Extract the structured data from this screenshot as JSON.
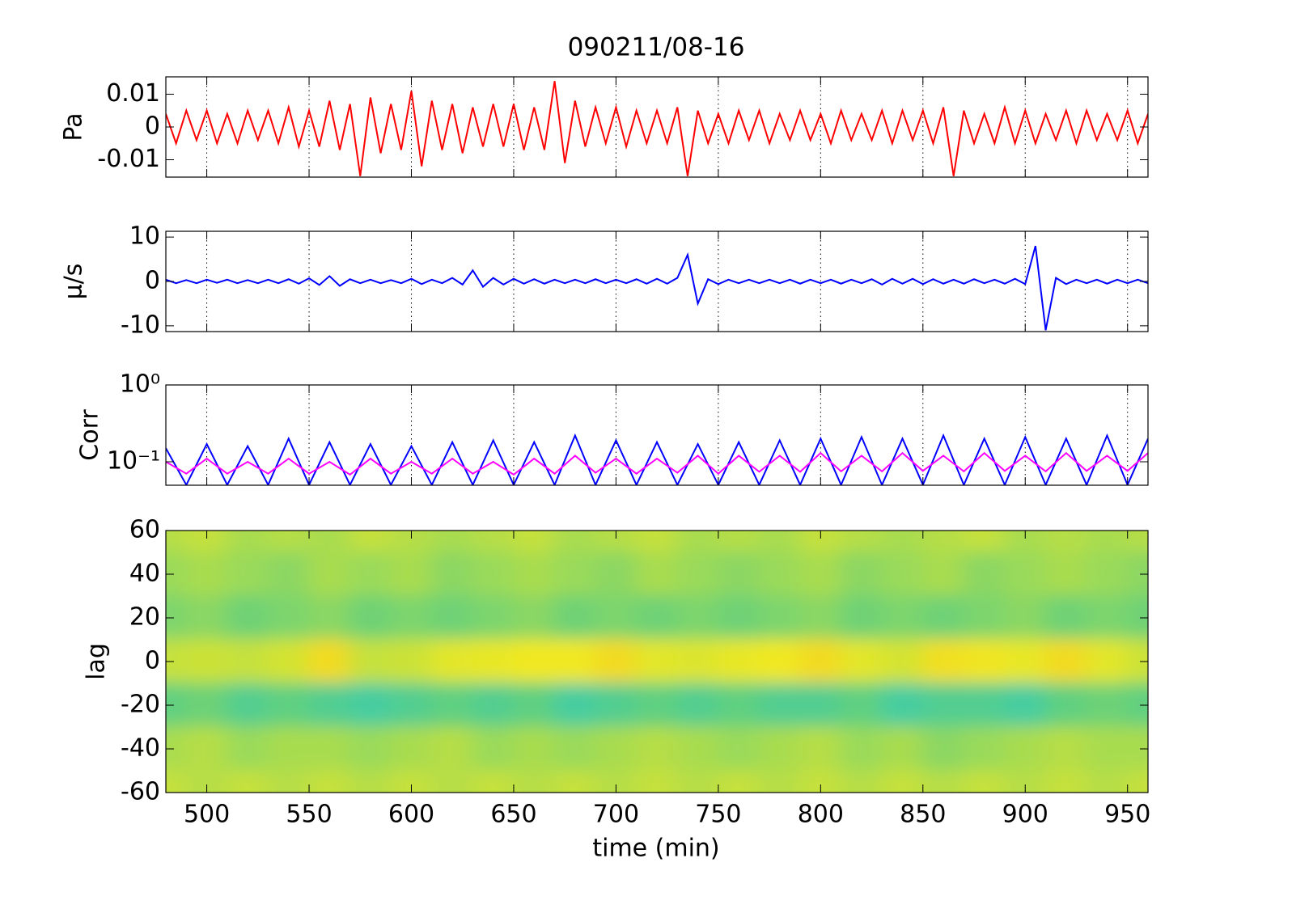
{
  "chart_data": [
    {
      "type": "line",
      "title": "090211/08-16",
      "ylabel": "Pa",
      "xlim": [
        480,
        960
      ],
      "xticks": [
        500,
        550,
        600,
        650,
        700,
        750,
        800,
        850,
        900,
        950
      ],
      "grid": "x",
      "ylim": [
        -0.0153,
        0.0153
      ],
      "yticks": [
        -0.01,
        0,
        0.01
      ],
      "x": [
        480,
        485,
        490,
        495,
        500,
        505,
        510,
        515,
        520,
        525,
        530,
        535,
        540,
        545,
        550,
        555,
        560,
        565,
        570,
        575,
        580,
        585,
        590,
        595,
        600,
        605,
        610,
        615,
        620,
        625,
        630,
        635,
        640,
        645,
        650,
        655,
        660,
        665,
        670,
        675,
        680,
        685,
        690,
        695,
        700,
        705,
        710,
        715,
        720,
        725,
        730,
        735,
        740,
        745,
        750,
        755,
        760,
        765,
        770,
        775,
        780,
        785,
        790,
        795,
        800,
        805,
        810,
        815,
        820,
        825,
        830,
        835,
        840,
        845,
        850,
        855,
        860,
        865,
        870,
        875,
        880,
        885,
        890,
        895,
        900,
        905,
        910,
        915,
        920,
        925,
        930,
        935,
        940,
        945,
        950,
        955,
        960
      ],
      "series": [
        {
          "color": "#ff0000",
          "values": [
            0.004,
            -0.005,
            0.005,
            -0.004,
            0.005,
            -0.005,
            0.004,
            -0.005,
            0.005,
            -0.004,
            0.005,
            -0.005,
            0.006,
            -0.006,
            0.005,
            -0.006,
            0.008,
            -0.007,
            0.007,
            -0.015,
            0.009,
            -0.008,
            0.007,
            -0.007,
            0.011,
            -0.012,
            0.008,
            -0.007,
            0.007,
            -0.008,
            0.006,
            -0.006,
            0.007,
            -0.006,
            0.007,
            -0.007,
            0.006,
            -0.007,
            0.014,
            -0.011,
            0.008,
            -0.006,
            0.006,
            -0.005,
            0.006,
            -0.006,
            0.005,
            -0.005,
            0.005,
            -0.005,
            0.006,
            -0.015,
            0.005,
            -0.005,
            0.004,
            -0.005,
            0.005,
            -0.004,
            0.005,
            -0.005,
            0.004,
            -0.004,
            0.005,
            -0.004,
            0.004,
            -0.005,
            0.005,
            -0.004,
            0.004,
            -0.004,
            0.005,
            -0.005,
            0.005,
            -0.004,
            0.005,
            -0.005,
            0.006,
            -0.015,
            0.005,
            -0.005,
            0.004,
            -0.005,
            0.006,
            -0.005,
            0.005,
            -0.005,
            0.004,
            -0.004,
            0.005,
            -0.005,
            0.005,
            -0.004,
            0.004,
            -0.004,
            0.005,
            -0.005,
            0.004
          ]
        }
      ]
    },
    {
      "type": "line",
      "ylabel": "μ/s",
      "xlim": [
        480,
        960
      ],
      "xticks": [
        500,
        550,
        600,
        650,
        700,
        750,
        800,
        850,
        900,
        950
      ],
      "grid": "x",
      "ylim": [
        -11.3,
        11.3
      ],
      "yticks": [
        -10,
        0,
        10
      ],
      "x": [
        480,
        485,
        490,
        495,
        500,
        505,
        510,
        515,
        520,
        525,
        530,
        535,
        540,
        545,
        550,
        555,
        560,
        565,
        570,
        575,
        580,
        585,
        590,
        595,
        600,
        605,
        610,
        615,
        620,
        625,
        630,
        635,
        640,
        645,
        650,
        655,
        660,
        665,
        670,
        675,
        680,
        685,
        690,
        695,
        700,
        705,
        710,
        715,
        720,
        725,
        730,
        735,
        740,
        745,
        750,
        755,
        760,
        765,
        770,
        775,
        780,
        785,
        790,
        795,
        800,
        805,
        810,
        815,
        820,
        825,
        830,
        835,
        840,
        845,
        850,
        855,
        860,
        865,
        870,
        875,
        880,
        885,
        890,
        895,
        900,
        905,
        910,
        915,
        920,
        925,
        930,
        935,
        940,
        945,
        950,
        955,
        960
      ],
      "series": [
        {
          "color": "#0000ff",
          "values": [
            0.4,
            -0.4,
            0.3,
            -0.4,
            0.4,
            -0.3,
            0.4,
            -0.4,
            0.3,
            -0.4,
            0.4,
            -0.4,
            0.5,
            -0.5,
            0.7,
            -0.8,
            1.2,
            -1.0,
            0.5,
            -0.4,
            0.4,
            -0.4,
            0.3,
            -0.4,
            0.6,
            -0.6,
            0.4,
            -0.4,
            0.8,
            -0.7,
            2.5,
            -1.2,
            0.8,
            -0.7,
            0.6,
            -0.5,
            0.5,
            -0.5,
            0.4,
            -0.4,
            0.4,
            -0.4,
            0.5,
            -0.4,
            0.4,
            -0.4,
            0.5,
            -0.5,
            0.6,
            -0.5,
            0.8,
            6.0,
            -5.0,
            0.5,
            -0.6,
            0.4,
            -0.4,
            0.4,
            -0.4,
            0.4,
            -0.4,
            0.4,
            -0.5,
            0.4,
            -0.4,
            0.4,
            -0.5,
            0.4,
            -0.4,
            0.5,
            -0.7,
            0.6,
            -0.5,
            0.6,
            -0.6,
            0.5,
            -0.5,
            0.4,
            -0.5,
            0.5,
            -0.4,
            0.4,
            -0.5,
            0.6,
            -0.6,
            8.0,
            -11.0,
            0.8,
            -0.6,
            0.4,
            -0.4,
            0.4,
            -0.5,
            0.4,
            -0.4,
            0.4,
            -0.4
          ]
        }
      ]
    },
    {
      "type": "line",
      "ylabel": "Corr",
      "ylog": true,
      "xlim": [
        480,
        960
      ],
      "xticks": [
        500,
        550,
        600,
        650,
        700,
        750,
        800,
        850,
        900,
        950
      ],
      "grid": "x",
      "ylim": [
        0.0495,
        1
      ],
      "yticks": [
        {
          "value": 0.1,
          "label": "10⁻¹"
        },
        {
          "value": 1,
          "label": "10⁰"
        }
      ],
      "x": [
        480,
        490,
        500,
        510,
        520,
        530,
        540,
        550,
        560,
        570,
        580,
        590,
        600,
        610,
        620,
        630,
        640,
        650,
        660,
        670,
        680,
        690,
        700,
        710,
        720,
        730,
        740,
        750,
        760,
        770,
        780,
        790,
        800,
        810,
        820,
        830,
        840,
        850,
        860,
        870,
        880,
        890,
        900,
        910,
        920,
        930,
        940,
        950,
        960
      ],
      "series": [
        {
          "color": "#0000ff",
          "values": [
            0.15,
            0.05,
            0.17,
            0.05,
            0.16,
            0.05,
            0.2,
            0.05,
            0.18,
            0.05,
            0.17,
            0.05,
            0.16,
            0.05,
            0.18,
            0.05,
            0.19,
            0.05,
            0.18,
            0.05,
            0.22,
            0.05,
            0.19,
            0.05,
            0.18,
            0.05,
            0.17,
            0.05,
            0.18,
            0.05,
            0.19,
            0.05,
            0.2,
            0.05,
            0.21,
            0.05,
            0.2,
            0.05,
            0.22,
            0.05,
            0.2,
            0.05,
            0.21,
            0.05,
            0.2,
            0.05,
            0.22,
            0.05,
            0.2
          ]
        },
        {
          "color": "#ff00ff",
          "values": [
            0.1,
            0.07,
            0.11,
            0.07,
            0.1,
            0.07,
            0.11,
            0.07,
            0.1,
            0.068,
            0.11,
            0.07,
            0.1,
            0.07,
            0.11,
            0.07,
            0.1,
            0.068,
            0.11,
            0.07,
            0.12,
            0.072,
            0.11,
            0.07,
            0.11,
            0.072,
            0.12,
            0.07,
            0.12,
            0.074,
            0.12,
            0.074,
            0.13,
            0.075,
            0.12,
            0.075,
            0.13,
            0.076,
            0.12,
            0.075,
            0.13,
            0.076,
            0.12,
            0.075,
            0.13,
            0.076,
            0.12,
            0.076,
            0.13
          ]
        }
      ]
    },
    {
      "type": "heatmap",
      "ylabel": "lag",
      "xlabel": "time (min)",
      "xlim": [
        480,
        960
      ],
      "xticks": [
        500,
        550,
        600,
        650,
        700,
        750,
        800,
        850,
        900,
        950
      ],
      "ylim": [
        -60,
        60
      ],
      "yticks": [
        -60,
        -40,
        -20,
        0,
        20,
        40,
        60
      ],
      "zlim": [
        0,
        1
      ],
      "colormap": [
        "#20c8d0",
        "#60d080",
        "#a8dc50",
        "#f0e820",
        "#f8a020"
      ],
      "x": [
        480,
        500,
        520,
        540,
        560,
        580,
        600,
        620,
        640,
        660,
        680,
        700,
        720,
        740,
        760,
        780,
        800,
        820,
        840,
        860,
        880,
        900,
        920,
        940,
        960
      ],
      "y": [
        60,
        40,
        20,
        0,
        -20,
        -40,
        -60
      ],
      "z": [
        [
          0.55,
          0.6,
          0.5,
          0.55,
          0.5,
          0.6,
          0.55,
          0.5,
          0.55,
          0.6,
          0.5,
          0.55,
          0.6,
          0.5,
          0.55,
          0.5,
          0.6,
          0.55,
          0.5,
          0.55,
          0.6,
          0.5,
          0.55,
          0.5,
          0.55
        ],
        [
          0.45,
          0.5,
          0.45,
          0.4,
          0.5,
          0.45,
          0.5,
          0.4,
          0.45,
          0.5,
          0.45,
          0.4,
          0.5,
          0.45,
          0.4,
          0.45,
          0.5,
          0.4,
          0.45,
          0.5,
          0.4,
          0.45,
          0.5,
          0.45,
          0.4
        ],
        [
          0.35,
          0.4,
          0.3,
          0.35,
          0.4,
          0.3,
          0.35,
          0.3,
          0.35,
          0.4,
          0.3,
          0.35,
          0.3,
          0.35,
          0.3,
          0.35,
          0.4,
          0.3,
          0.35,
          0.3,
          0.35,
          0.4,
          0.3,
          0.35,
          0.3
        ],
        [
          0.6,
          0.62,
          0.6,
          0.65,
          0.8,
          0.6,
          0.62,
          0.7,
          0.72,
          0.75,
          0.75,
          0.8,
          0.7,
          0.68,
          0.72,
          0.75,
          0.8,
          0.7,
          0.65,
          0.78,
          0.76,
          0.72,
          0.8,
          0.7,
          0.62
        ],
        [
          0.25,
          0.3,
          0.2,
          0.25,
          0.2,
          0.15,
          0.2,
          0.25,
          0.2,
          0.25,
          0.15,
          0.2,
          0.25,
          0.2,
          0.25,
          0.2,
          0.2,
          0.25,
          0.15,
          0.2,
          0.2,
          0.15,
          0.25,
          0.3,
          0.25
        ],
        [
          0.5,
          0.55,
          0.45,
          0.5,
          0.5,
          0.45,
          0.5,
          0.55,
          0.45,
          0.5,
          0.45,
          0.5,
          0.55,
          0.5,
          0.45,
          0.5,
          0.55,
          0.45,
          0.5,
          0.4,
          0.45,
          0.5,
          0.55,
          0.5,
          0.5
        ],
        [
          0.6,
          0.55,
          0.6,
          0.55,
          0.6,
          0.55,
          0.6,
          0.55,
          0.6,
          0.55,
          0.6,
          0.55,
          0.6,
          0.55,
          0.6,
          0.55,
          0.6,
          0.55,
          0.6,
          0.55,
          0.6,
          0.55,
          0.6,
          0.55,
          0.6
        ]
      ]
    }
  ]
}
